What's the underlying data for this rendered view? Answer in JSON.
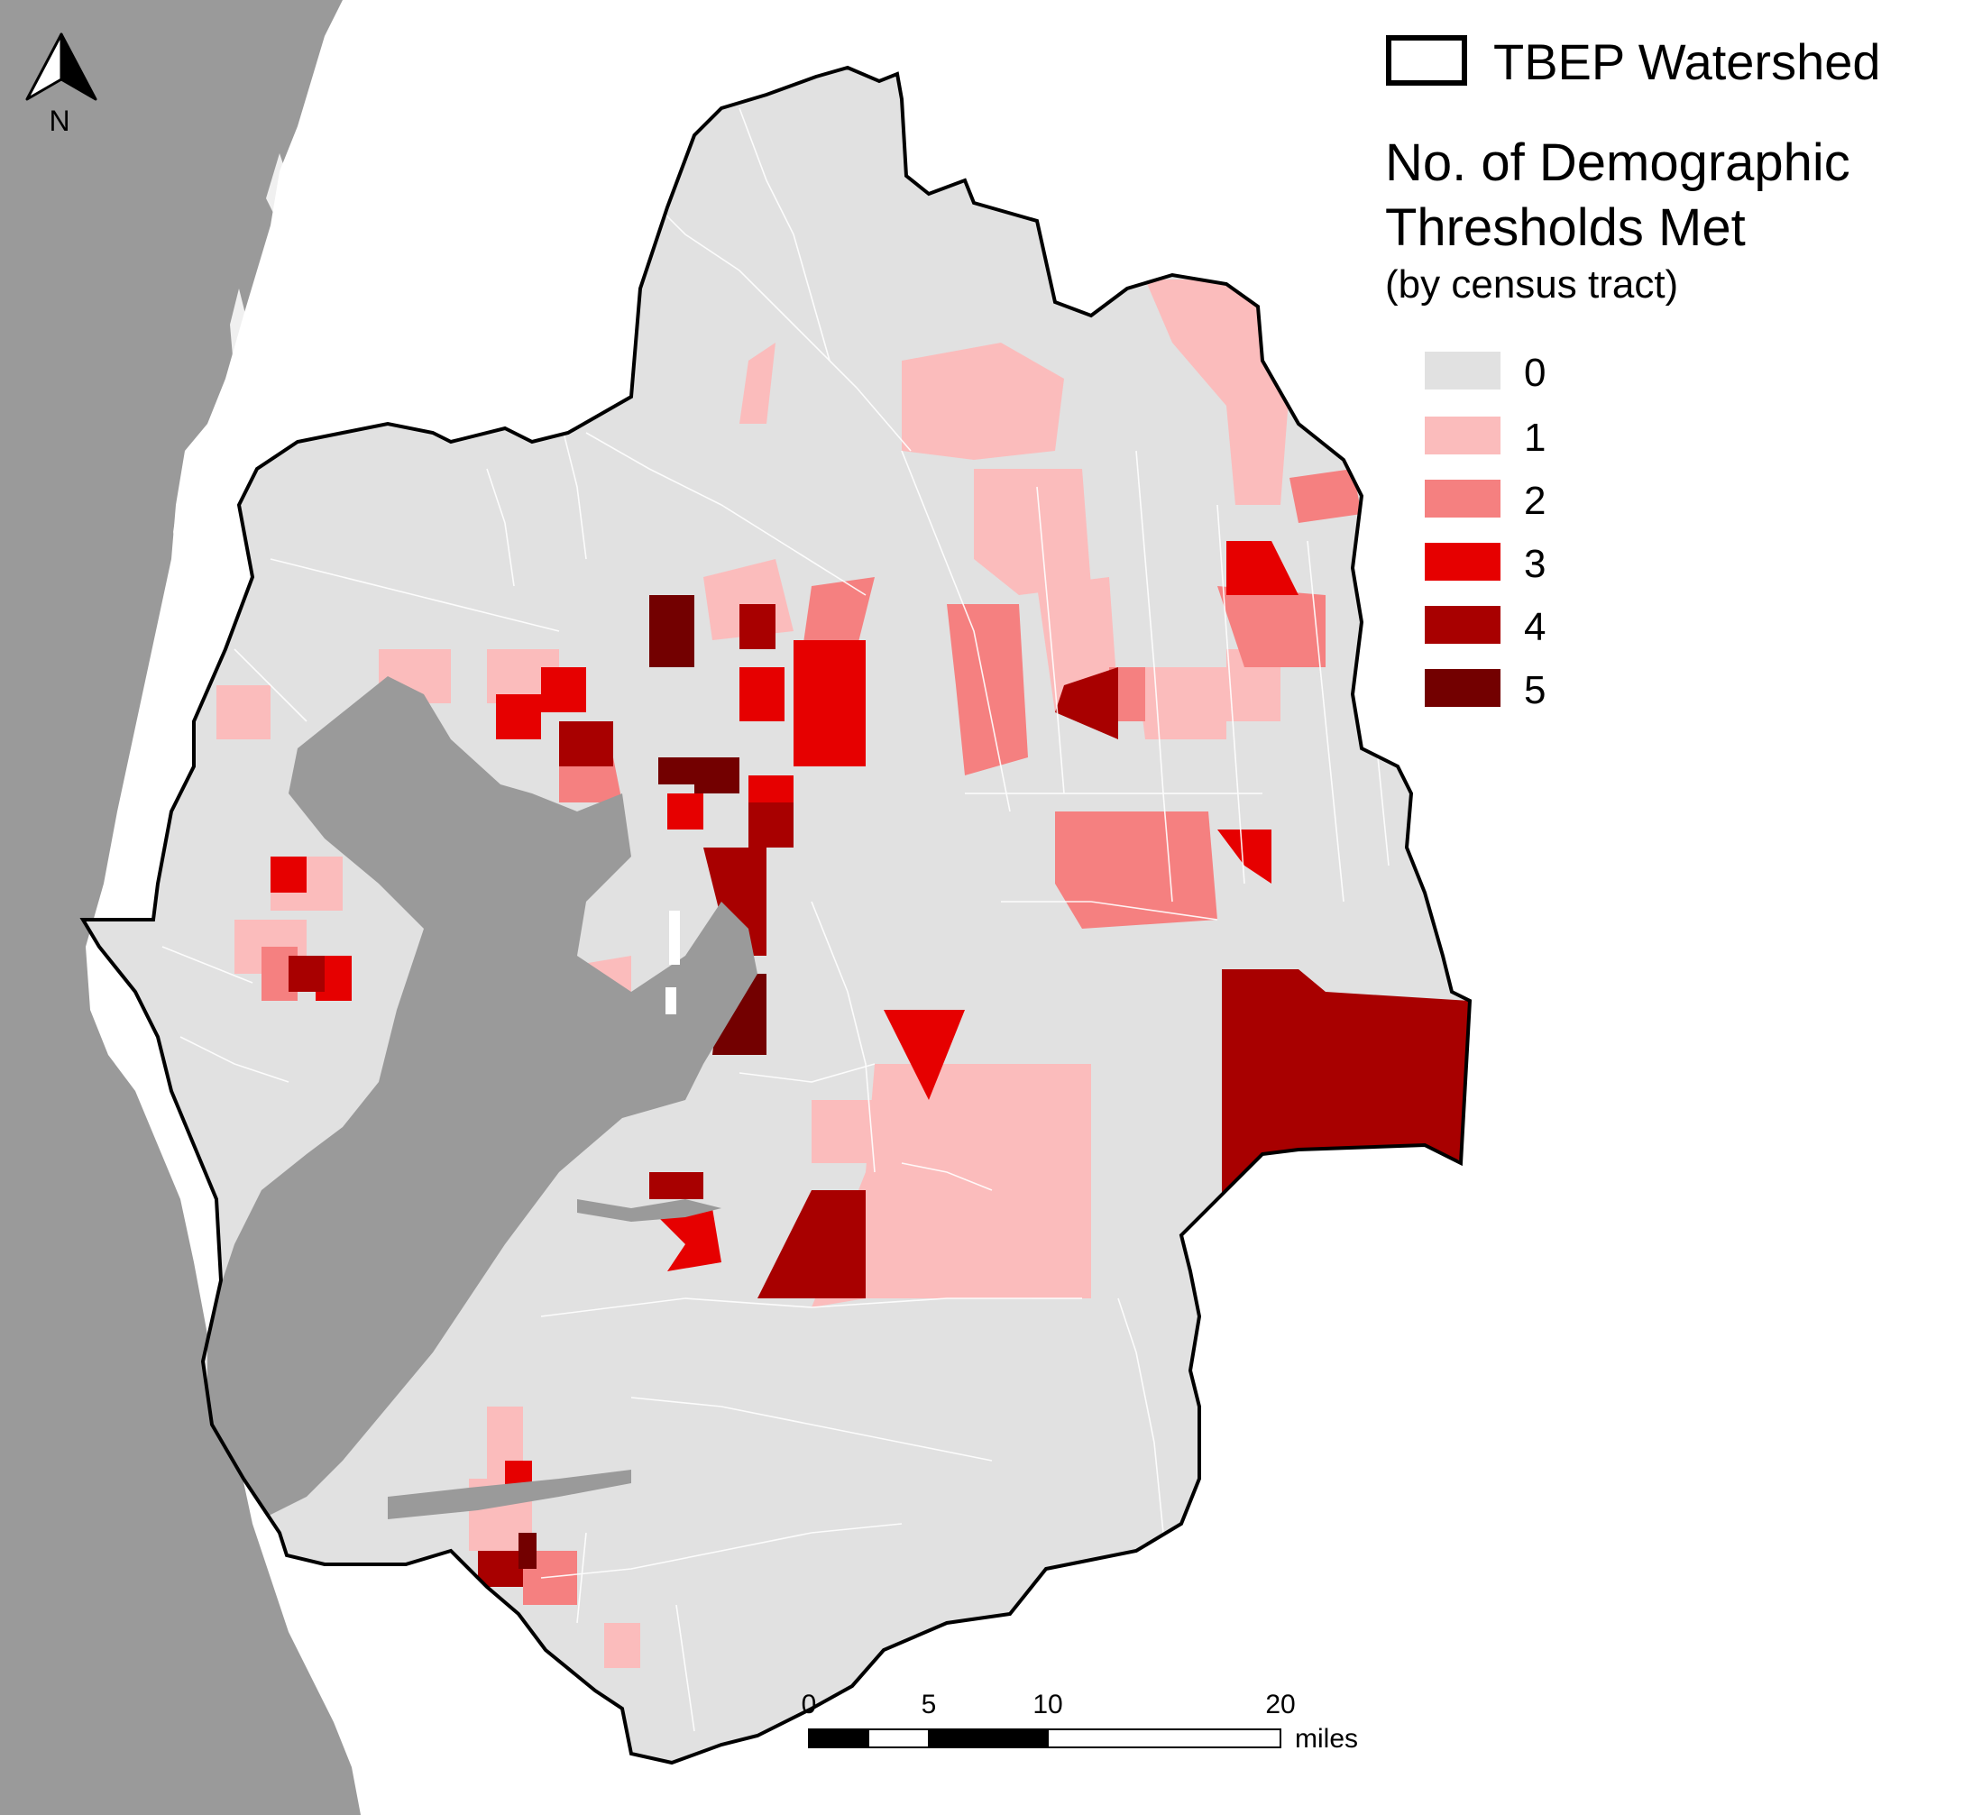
{
  "legend": {
    "boundary_label": "TBEP Watershed",
    "title_line1": "No. of Demographic",
    "title_line2": "Thresholds Met",
    "subtitle": "(by census tract)",
    "classes": [
      {
        "label": "0",
        "color": "#e1e1e1"
      },
      {
        "label": "1",
        "color": "#fbbcbc"
      },
      {
        "label": "2",
        "color": "#f58080"
      },
      {
        "label": "3",
        "color": "#e60000"
      },
      {
        "label": "4",
        "color": "#a80000"
      },
      {
        "label": "5",
        "color": "#730000"
      }
    ]
  },
  "north_arrow": {
    "label": "N"
  },
  "scale_bar": {
    "ticks": [
      "0",
      "5",
      "10",
      "20"
    ],
    "unit": "miles"
  },
  "colors": {
    "land_outside": "#9a9a9a",
    "water_outside": "#ffffff",
    "bay": "#9a9a9a",
    "boundary": "#000000",
    "tract_lines": "#ffffff"
  }
}
